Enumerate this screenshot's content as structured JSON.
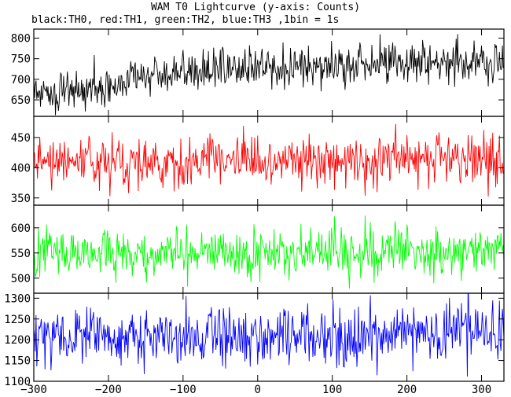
{
  "title": "WAM T0 Lightcurve (y-axis: Counts)",
  "subtitle": "black:TH0, red:TH1, green:TH2, blue:TH3 ,1bin = 1s",
  "chart_data": {
    "type": "line",
    "x_range": [
      -300,
      330
    ],
    "x_ticks": [
      -300,
      -200,
      -100,
      0,
      100,
      200,
      300
    ],
    "bin_seconds": 1,
    "panels": [
      {
        "name": "TH0",
        "color": "#000000",
        "ylim": [
          610,
          822
        ],
        "yticks": [
          650,
          700,
          750,
          800
        ],
        "trend": [
          [
            -300,
            670
          ],
          [
            -200,
            675
          ],
          [
            -180,
            692
          ],
          [
            -150,
            710
          ],
          [
            -100,
            718
          ],
          [
            0,
            728
          ],
          [
            100,
            733
          ],
          [
            200,
            740
          ],
          [
            330,
            748
          ]
        ],
        "noise_sd": 24
      },
      {
        "name": "TH1",
        "color": "#ff0000",
        "ylim": [
          338,
          485
        ],
        "yticks": [
          350,
          400,
          450
        ],
        "trend": [
          [
            -300,
            410
          ],
          [
            330,
            412
          ]
        ],
        "noise_sd": 21
      },
      {
        "name": "TH2",
        "color": "#00ff00",
        "ylim": [
          470,
          645
        ],
        "yticks": [
          500,
          550,
          600
        ],
        "trend": [
          [
            -300,
            550
          ],
          [
            330,
            553
          ]
        ],
        "noise_sd": 24
      },
      {
        "name": "TH3",
        "color": "#0000ff",
        "ylim": [
          1100,
          1312
        ],
        "yticks": [
          1100,
          1150,
          1200,
          1250,
          1300
        ],
        "trend": [
          [
            -300,
            1205
          ],
          [
            150,
            1212
          ],
          [
            330,
            1220
          ]
        ],
        "noise_sd": 36
      }
    ]
  }
}
